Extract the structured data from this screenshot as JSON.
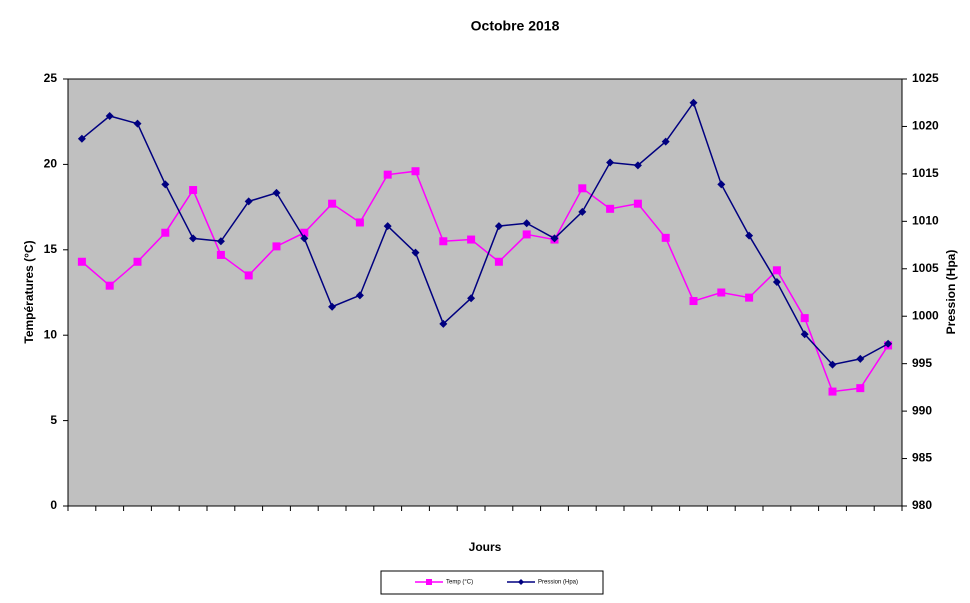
{
  "chart_data": {
    "type": "line",
    "title": "Octobre 2018",
    "x_label": "Jours",
    "y_label": "Températures (°C)",
    "y2_label": "Pression (Hpa)",
    "categories": [
      null,
      null,
      null,
      null,
      null,
      null,
      null,
      null,
      null,
      null,
      null,
      null,
      null,
      null,
      null,
      null,
      null,
      null,
      null,
      null,
      null,
      null,
      null,
      null,
      null,
      null,
      null,
      null,
      null,
      null
    ],
    "ylim": [
      0,
      25
    ],
    "yticks": [
      0,
      5,
      10,
      15,
      20,
      25
    ],
    "y2lim": [
      980,
      1025
    ],
    "y2ticks": [
      980,
      985,
      990,
      995,
      1000,
      1005,
      1010,
      1015,
      1020,
      1025
    ],
    "grid": false,
    "legend": "bottom",
    "series": [
      {
        "name": "Temp (°C)",
        "color": "#ff00ff",
        "marker": "square",
        "values": [
          14.3,
          12.9,
          14.3,
          16.0,
          18.5,
          14.7,
          13.5,
          15.2,
          16.0,
          17.7,
          16.6,
          19.4,
          19.6,
          15.5,
          15.6,
          14.3,
          15.9,
          15.6,
          18.6,
          17.4,
          17.7,
          15.7,
          12.0,
          12.5,
          12.2,
          13.8,
          11.0,
          6.7,
          6.9,
          9.4
        ]
      },
      {
        "name": "Pression (Hpa)",
        "color": "#000080",
        "marker": "diamond",
        "axis": "y2",
        "values": [
          1018.7,
          1021.1,
          1020.3,
          1013.9,
          1008.2,
          1007.9,
          1012.1,
          1013.0,
          1008.2,
          1001.0,
          1002.2,
          1009.5,
          1006.7,
          999.2,
          1001.9,
          1009.5,
          1009.8,
          1008.2,
          1011.0,
          1016.2,
          1015.9,
          1018.4,
          1022.5,
          1013.9,
          1008.5,
          1003.6,
          998.1,
          994.9,
          995.5,
          997.1
        ]
      }
    ]
  }
}
